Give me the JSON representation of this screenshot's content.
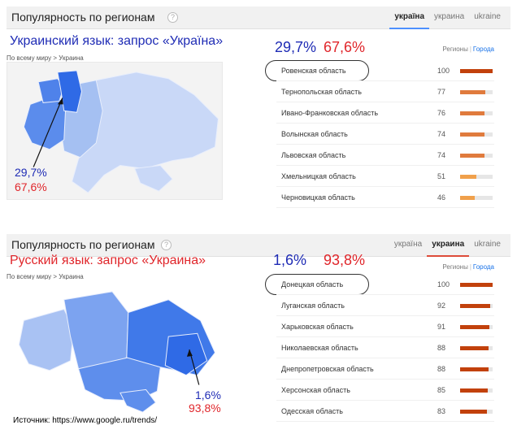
{
  "colors": {
    "blue_text": "#1f2cb5",
    "red_text": "#e0262b",
    "bar_strong": "#c2410c",
    "bar_mid": "#e07b3d",
    "bar_light": "#f0a04b"
  },
  "top": {
    "header_title": "Популярность по регионам",
    "help_icon": "?",
    "tabs": [
      {
        "label": "україна",
        "active": true
      },
      {
        "label": "украина",
        "active": false
      },
      {
        "label": "ukraine",
        "active": false
      }
    ],
    "query_title": "Украинский язык: запрос «Україна»",
    "breadcrumb": "По всему миру > Украина",
    "big_num_1": "29,7%",
    "big_num_2": "67,6%",
    "map_num_1": "29,7%",
    "map_num_2": "67,6%",
    "region_links": {
      "regions": "Регионы",
      "cities": "Города"
    },
    "rows": [
      {
        "name": "Ровенская область",
        "value": "100",
        "level": 1.0
      },
      {
        "name": "Тернопольская область",
        "value": "77",
        "level": 0.77
      },
      {
        "name": "Ивано-Франковская область",
        "value": "76",
        "level": 0.76
      },
      {
        "name": "Волынская область",
        "value": "74",
        "level": 0.74
      },
      {
        "name": "Львовская область",
        "value": "74",
        "level": 0.74
      },
      {
        "name": "Хмельницкая область",
        "value": "51",
        "level": 0.51
      },
      {
        "name": "Черновицкая область",
        "value": "46",
        "level": 0.46
      }
    ]
  },
  "bottom": {
    "header_title": "Популярность по регионам",
    "help_icon": "?",
    "tabs": [
      {
        "label": "україна",
        "active": false
      },
      {
        "label": "украина",
        "active": true
      },
      {
        "label": "ukraine",
        "active": false
      }
    ],
    "query_title": "Русский язык: запрос «Украина»",
    "breadcrumb": "По всему миру > Украина",
    "big_num_1": "1,6%",
    "big_num_2": "93,8%",
    "map_num_1": "1,6%",
    "map_num_2": "93,8%",
    "region_links": {
      "regions": "Регионы",
      "cities": "Города"
    },
    "rows": [
      {
        "name": "Донецкая область",
        "value": "100",
        "level": 1.0
      },
      {
        "name": "Луганская область",
        "value": "92",
        "level": 0.92
      },
      {
        "name": "Харьковская область",
        "value": "91",
        "level": 0.91
      },
      {
        "name": "Николаевская область",
        "value": "88",
        "level": 0.88
      },
      {
        "name": "Днепропетровская область",
        "value": "88",
        "level": 0.88
      },
      {
        "name": "Херсонская область",
        "value": "85",
        "level": 0.85
      },
      {
        "name": "Одесская область",
        "value": "83",
        "level": 0.83
      }
    ]
  },
  "source": "Источник: https://www.google.ru/trends/"
}
